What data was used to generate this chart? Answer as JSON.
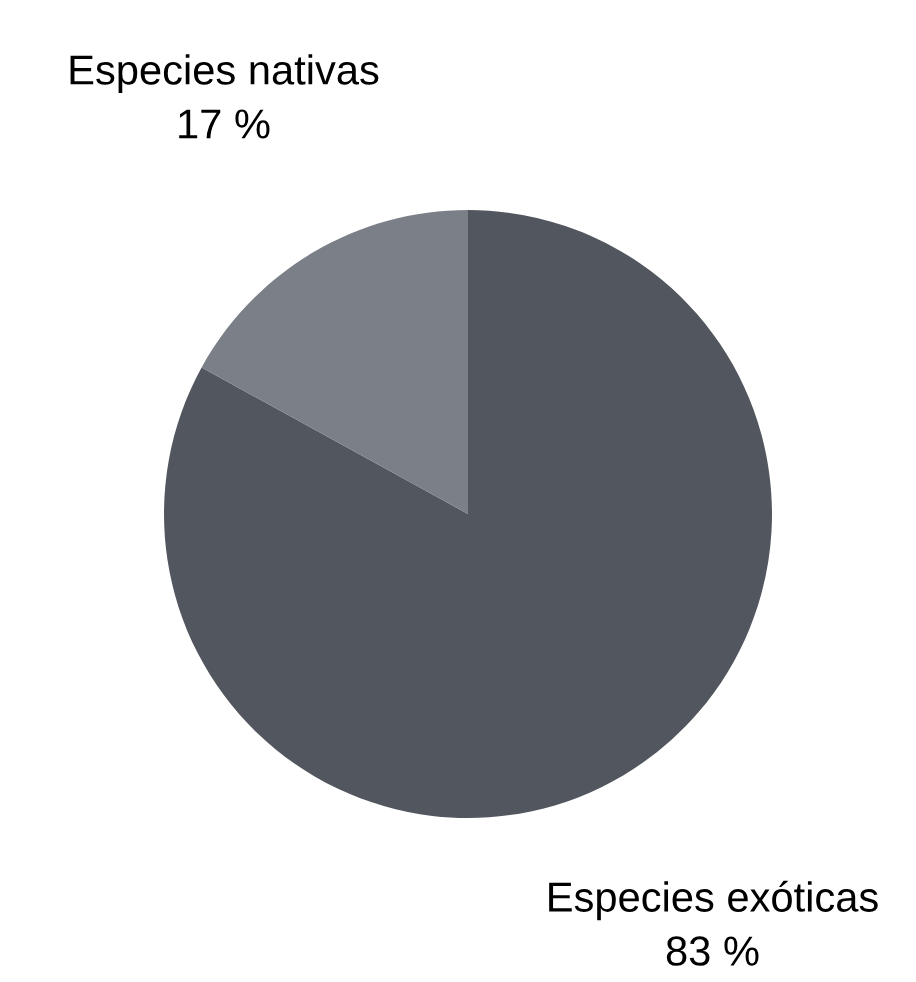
{
  "chart_data": {
    "type": "pie",
    "categories": [
      "Especies exóticas",
      "Especies nativas"
    ],
    "values": [
      83,
      17
    ],
    "value_labels": [
      "83 %",
      "17 %"
    ],
    "colors": [
      "#52565e",
      "#7a7f88"
    ]
  }
}
